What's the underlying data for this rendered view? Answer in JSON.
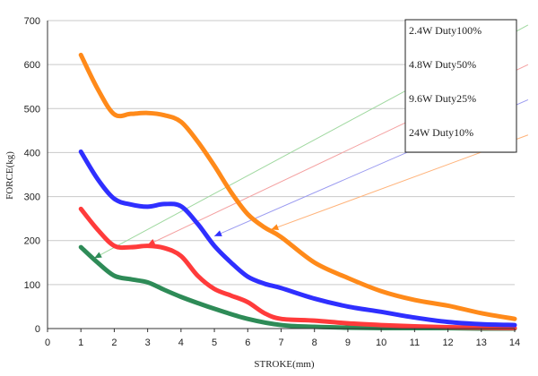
{
  "chart_data": {
    "type": "line",
    "xlabel": "STROKE(mm)",
    "ylabel": "FORCE(kg)",
    "xlim": [
      0,
      14
    ],
    "ylim": [
      0,
      700
    ],
    "xticks": [
      0,
      1,
      2,
      3,
      4,
      5,
      6,
      7,
      8,
      9,
      10,
      11,
      12,
      13,
      14
    ],
    "yticks": [
      0,
      100,
      200,
      300,
      400,
      500,
      600,
      700
    ],
    "grid": "horizontal",
    "legend_position": "top-right",
    "series": [
      {
        "name": "2.4W Duty100%",
        "color": "#2e8b57",
        "x": [
          1,
          1.5,
          2,
          2.5,
          3,
          3.5,
          4,
          4.5,
          5,
          6,
          7,
          8,
          9,
          10,
          11,
          12,
          13,
          14
        ],
        "values": [
          185,
          150,
          120,
          112,
          105,
          88,
          72,
          58,
          45,
          22,
          8,
          4,
          2,
          1,
          1,
          1,
          0,
          0
        ]
      },
      {
        "name": "4.8W Duty50%",
        "color": "#ff3b3b",
        "x": [
          1,
          1.5,
          2,
          2.5,
          3,
          3.5,
          4,
          4.5,
          5,
          5.5,
          6,
          6.5,
          7,
          8,
          9,
          10,
          11,
          12,
          13,
          14
        ],
        "values": [
          272,
          225,
          188,
          185,
          188,
          183,
          165,
          120,
          90,
          75,
          60,
          35,
          22,
          18,
          12,
          8,
          5,
          3,
          2,
          1
        ]
      },
      {
        "name": "9.6W Duty25%",
        "color": "#2f2fff",
        "x": [
          1,
          1.5,
          2,
          2.5,
          3,
          3.5,
          4,
          4.5,
          5,
          5.5,
          6,
          6.5,
          7,
          8,
          9,
          10,
          11,
          12,
          13,
          14
        ],
        "values": [
          402,
          340,
          295,
          282,
          277,
          283,
          278,
          238,
          188,
          150,
          118,
          102,
          92,
          68,
          50,
          38,
          25,
          15,
          10,
          8
        ]
      },
      {
        "name": "24W Duty10%",
        "color": "#ff8a1a",
        "x": [
          1,
          1.5,
          2,
          2.5,
          3,
          3.5,
          4,
          4.5,
          5,
          5.5,
          6,
          6.5,
          7,
          8,
          9,
          10,
          11,
          12,
          13,
          14
        ],
        "values": [
          622,
          545,
          487,
          488,
          490,
          485,
          470,
          425,
          370,
          310,
          260,
          230,
          208,
          150,
          115,
          85,
          65,
          52,
          35,
          22
        ]
      }
    ],
    "legend": {
      "entries": [
        "2.4W Duty100%",
        "4.8W Duty50%",
        "9.6W Duty25%",
        "24W Duty10%"
      ]
    },
    "annotations": [
      {
        "series": "2.4W Duty100%",
        "color": "#9fd89f",
        "from": [
          14.4,
          690
        ],
        "to": [
          1.4,
          160
        ]
      },
      {
        "series": "4.8W Duty50%",
        "color": "#f4a0a0",
        "from": [
          14.4,
          600
        ],
        "to": [
          3.0,
          190
        ]
      },
      {
        "series": "9.6W Duty25%",
        "color": "#9a9af0",
        "from": [
          14.4,
          520
        ],
        "to": [
          5.0,
          210
        ]
      },
      {
        "series": "24W Duty10%",
        "color": "#ffb37a",
        "from": [
          14.4,
          440
        ],
        "to": [
          6.7,
          225
        ]
      }
    ]
  }
}
